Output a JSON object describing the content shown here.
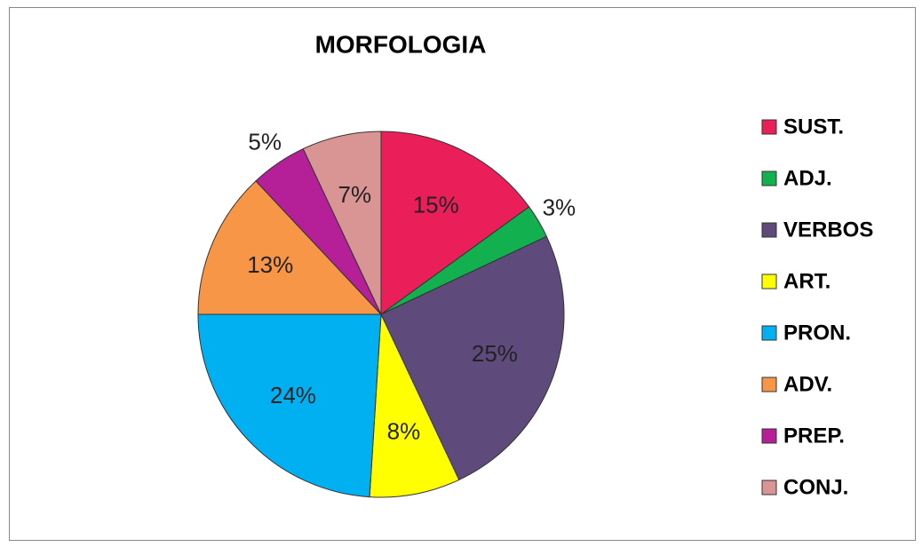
{
  "chart_data": {
    "type": "pie",
    "title": "MORFOLOGIA",
    "categories": [
      "SUST.",
      "ADJ.",
      "VERBOS",
      "ART.",
      "PRON.",
      "ADV.",
      "PREP.",
      "CONJ."
    ],
    "values": [
      15,
      3,
      25,
      8,
      24,
      13,
      5,
      7
    ],
    "value_labels": [
      "15%",
      "3%",
      "25%",
      "8%",
      "24%",
      "13%",
      "5%",
      "7%"
    ],
    "colors": [
      "#ea1f5a",
      "#12b04f",
      "#5f4a7c",
      "#ffff00",
      "#00b0f0",
      "#f79646",
      "#b51f97",
      "#d99594"
    ],
    "legend": "right"
  }
}
